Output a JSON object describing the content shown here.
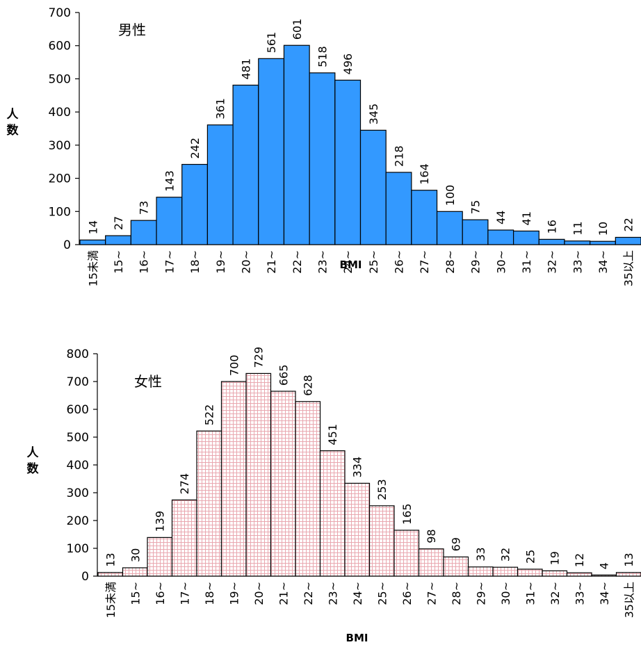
{
  "chart_data": [
    {
      "type": "bar",
      "title": "男性",
      "xlabel": "BMI",
      "ylabel": "人数",
      "ylim": [
        0,
        700
      ],
      "yticks": [
        0,
        100,
        200,
        300,
        400,
        500,
        600,
        700
      ],
      "categories": [
        "15未満",
        "15~",
        "16~",
        "17~",
        "18~",
        "19~",
        "20~",
        "21~",
        "22~",
        "23~",
        "24~",
        "25~",
        "26~",
        "27~",
        "28~",
        "29~",
        "30~",
        "31~",
        "32~",
        "33~",
        "34~",
        "35以上"
      ],
      "values": [
        14,
        27,
        73,
        143,
        242,
        361,
        481,
        561,
        601,
        518,
        496,
        345,
        218,
        164,
        100,
        75,
        44,
        41,
        16,
        11,
        10,
        22
      ],
      "bar_color": "#3399ff",
      "bar_pattern": "solid",
      "grid": false
    },
    {
      "type": "bar",
      "title": "女性",
      "xlabel": "BMI",
      "ylabel": "人数",
      "ylim": [
        0,
        800
      ],
      "yticks": [
        0,
        100,
        200,
        300,
        400,
        500,
        600,
        700,
        800
      ],
      "categories": [
        "15未満",
        "15~",
        "16~",
        "17~",
        "18~",
        "19~",
        "20~",
        "21~",
        "22~",
        "23~",
        "24~",
        "25~",
        "26~",
        "27~",
        "28~",
        "29~",
        "30~",
        "31~",
        "32~",
        "33~",
        "34~",
        "35以上"
      ],
      "values": [
        13,
        30,
        139,
        274,
        522,
        700,
        729,
        665,
        628,
        451,
        334,
        253,
        165,
        98,
        69,
        33,
        32,
        25,
        19,
        12,
        4,
        13
      ],
      "bar_color": "#f2b8bf",
      "bar_pattern": "grid",
      "grid": false
    }
  ]
}
